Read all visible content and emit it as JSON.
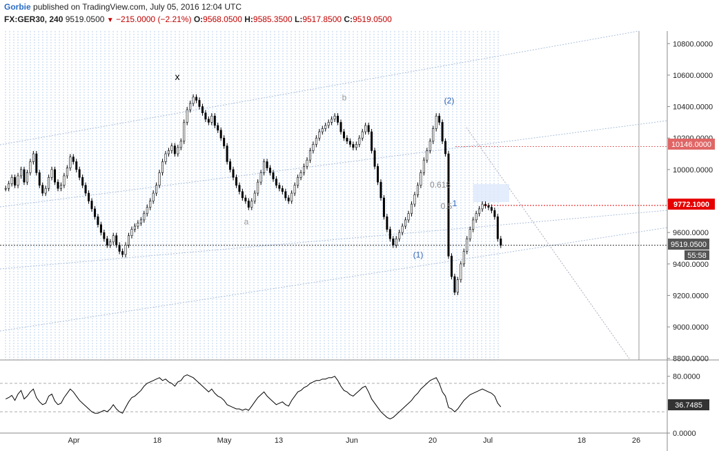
{
  "header": {
    "author": "Gorbie",
    "published_text": "published on TradingView.com, July 05, 2016 12:04 UTC",
    "symbol": "FX:GER30, 240",
    "last": "9519.0500",
    "arrow_icon": "down-triangle-icon",
    "change": "−215.0000 (−2.21%)",
    "o_label": "O:",
    "o": "9568.0500",
    "h_label": "H:",
    "h": "9585.3500",
    "l_label": "L:",
    "l": "9517.8500",
    "c_label": "C:",
    "c": "9519.0500"
  },
  "colors": {
    "up_candle": "#000000",
    "down_candle": "#000000",
    "session_lines": "#87b3e6",
    "channel_lines": "#a9bedc",
    "price_badge_red": "#e60000",
    "resistance_badge": "#e06666",
    "current_badge": "#555555",
    "rsi_line": "#000000"
  },
  "chart_data": [
    {
      "type": "candlestick",
      "yaxis": {
        "ticks": [
          "10800.0000",
          "10600.0000",
          "10400.0000",
          "10200.0000",
          "10000.0000",
          "9800.0000",
          "9600.0000",
          "9400.0000",
          "9200.0000",
          "9000.0000",
          "8800.0000"
        ],
        "ylim": [
          8790,
          10880
        ]
      },
      "xaxis": {
        "ticks": [
          "Apr",
          "18",
          "May",
          "13",
          "Jun",
          "20",
          "Jul",
          "18",
          "26"
        ]
      },
      "closes": [
        9880,
        9910,
        9950,
        9900,
        9960,
        10000,
        9920,
        9980,
        10050,
        10100,
        9980,
        9900,
        9850,
        9880,
        9950,
        10000,
        9920,
        9880,
        9900,
        9960,
        10010,
        10080,
        10050,
        10000,
        9950,
        9900,
        9850,
        9800,
        9750,
        9700,
        9650,
        9600,
        9560,
        9520,
        9540,
        9580,
        9520,
        9480,
        9460,
        9520,
        9580,
        9620,
        9640,
        9660,
        9680,
        9720,
        9760,
        9800,
        9850,
        9900,
        9980,
        10050,
        10100,
        10120,
        10150,
        10100,
        10140,
        10180,
        10300,
        10380,
        10420,
        10460,
        10440,
        10400,
        10360,
        10320,
        10300,
        10340,
        10280,
        10250,
        10200,
        10150,
        10050,
        10000,
        9950,
        9900,
        9860,
        9820,
        9800,
        9760,
        9800,
        9850,
        9920,
        9980,
        10050,
        10010,
        9980,
        9940,
        9900,
        9880,
        9860,
        9820,
        9800,
        9850,
        9900,
        9950,
        9980,
        10020,
        10060,
        10120,
        10160,
        10200,
        10240,
        10260,
        10280,
        10300,
        10320,
        10340,
        10300,
        10240,
        10200,
        10180,
        10160,
        10140,
        10160,
        10200,
        10240,
        10280,
        10240,
        10120,
        10020,
        9920,
        9820,
        9700,
        9620,
        9560,
        9520,
        9560,
        9600,
        9640,
        9680,
        9720,
        9780,
        9840,
        9900,
        9980,
        10060,
        10120,
        10180,
        10260,
        10340,
        10300,
        10180,
        10100,
        9450,
        9320,
        9220,
        9300,
        9400,
        9480,
        9560,
        9620,
        9680,
        9720,
        9750,
        9780,
        9770,
        9760,
        9740,
        9700,
        9560,
        9519
      ],
      "last_price": "9519.0500",
      "resistance_price": "10146.0000",
      "level_price": "9772.1000",
      "countdown": "55:58",
      "wave_labels": [
        {
          "text": "x",
          "price": 10570
        },
        {
          "text": "a",
          "price": 9650
        },
        {
          "text": "b",
          "price": 10440
        },
        {
          "text": "(2)",
          "price": 10420
        },
        {
          "text": "(1)",
          "price": 9440
        }
      ],
      "fib_labels": [
        "0.618",
        "0.5",
        "1"
      ]
    },
    {
      "type": "line",
      "name": "RSI",
      "yaxis": {
        "ticks": [
          "80.0000",
          "0.0000"
        ],
        "ylim": [
          0,
          100
        ],
        "bands": [
          30,
          70
        ]
      },
      "values": [
        48,
        50,
        53,
        46,
        55,
        60,
        48,
        52,
        58,
        62,
        50,
        44,
        40,
        42,
        52,
        55,
        45,
        40,
        42,
        50,
        56,
        62,
        58,
        52,
        46,
        42,
        38,
        34,
        30,
        28,
        28,
        30,
        32,
        30,
        34,
        40,
        34,
        30,
        28,
        36,
        44,
        50,
        52,
        56,
        60,
        66,
        70,
        72,
        74,
        76,
        78,
        74,
        76,
        72,
        70,
        66,
        72,
        74,
        80,
        82,
        80,
        78,
        74,
        70,
        66,
        62,
        58,
        62,
        56,
        52,
        50,
        46,
        40,
        38,
        36,
        34,
        34,
        32,
        34,
        32,
        38,
        44,
        50,
        54,
        58,
        52,
        48,
        44,
        40,
        42,
        44,
        40,
        38,
        46,
        52,
        58,
        60,
        64,
        66,
        70,
        72,
        74,
        74,
        76,
        76,
        78,
        78,
        80,
        74,
        66,
        60,
        58,
        54,
        52,
        56,
        60,
        64,
        66,
        58,
        48,
        42,
        36,
        30,
        26,
        22,
        20,
        22,
        26,
        30,
        34,
        38,
        42,
        46,
        52,
        56,
        62,
        66,
        70,
        74,
        76,
        78,
        70,
        58,
        52,
        36,
        34,
        30,
        34,
        40,
        46,
        50,
        54,
        56,
        58,
        60,
        62,
        60,
        58,
        56,
        52,
        42,
        36.7485
      ],
      "last_value": "36.7485"
    }
  ]
}
